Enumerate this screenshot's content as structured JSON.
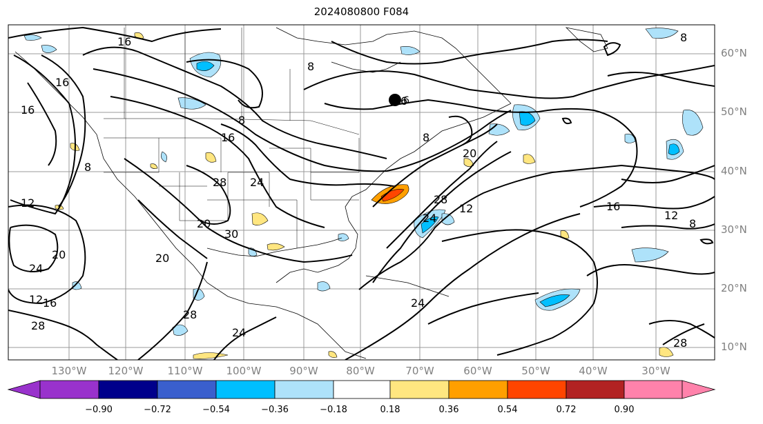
{
  "title": "2024080800 F084",
  "lat_labels": [
    "60°N",
    "50°N",
    "40°N",
    "30°N",
    "20°N",
    "10°N"
  ],
  "lon_labels": [
    "130°W",
    "120°W",
    "110°W",
    "100°W",
    "90°W",
    "80°W",
    "70°W",
    "60°W",
    "50°W",
    "40°W",
    "30°W"
  ],
  "colorbar": {
    "ticks": [
      "−0.90",
      "−0.72",
      "−0.54",
      "−0.36",
      "−0.18",
      "0.18",
      "0.36",
      "0.54",
      "0.72",
      "0.90"
    ],
    "colors": [
      "#9932cc",
      "#00008b",
      "#3a5fcd",
      "#00bfff",
      "#aee2fa",
      "#ffffff",
      "#ffe680",
      "#ff9f00",
      "#ff4500",
      "#b22222",
      "#ff82ab"
    ]
  },
  "contour_labels": [
    "16",
    "8",
    "16",
    "8",
    "12",
    "16",
    "6",
    "8",
    "16",
    "24",
    "28",
    "20",
    "30",
    "20",
    "24",
    "20",
    "12",
    "16",
    "28",
    "24",
    "28",
    "28",
    "20",
    "24",
    "12",
    "8",
    "16",
    "12",
    "8",
    "8",
    "28",
    "24"
  ],
  "marker": {
    "label": "6"
  }
}
